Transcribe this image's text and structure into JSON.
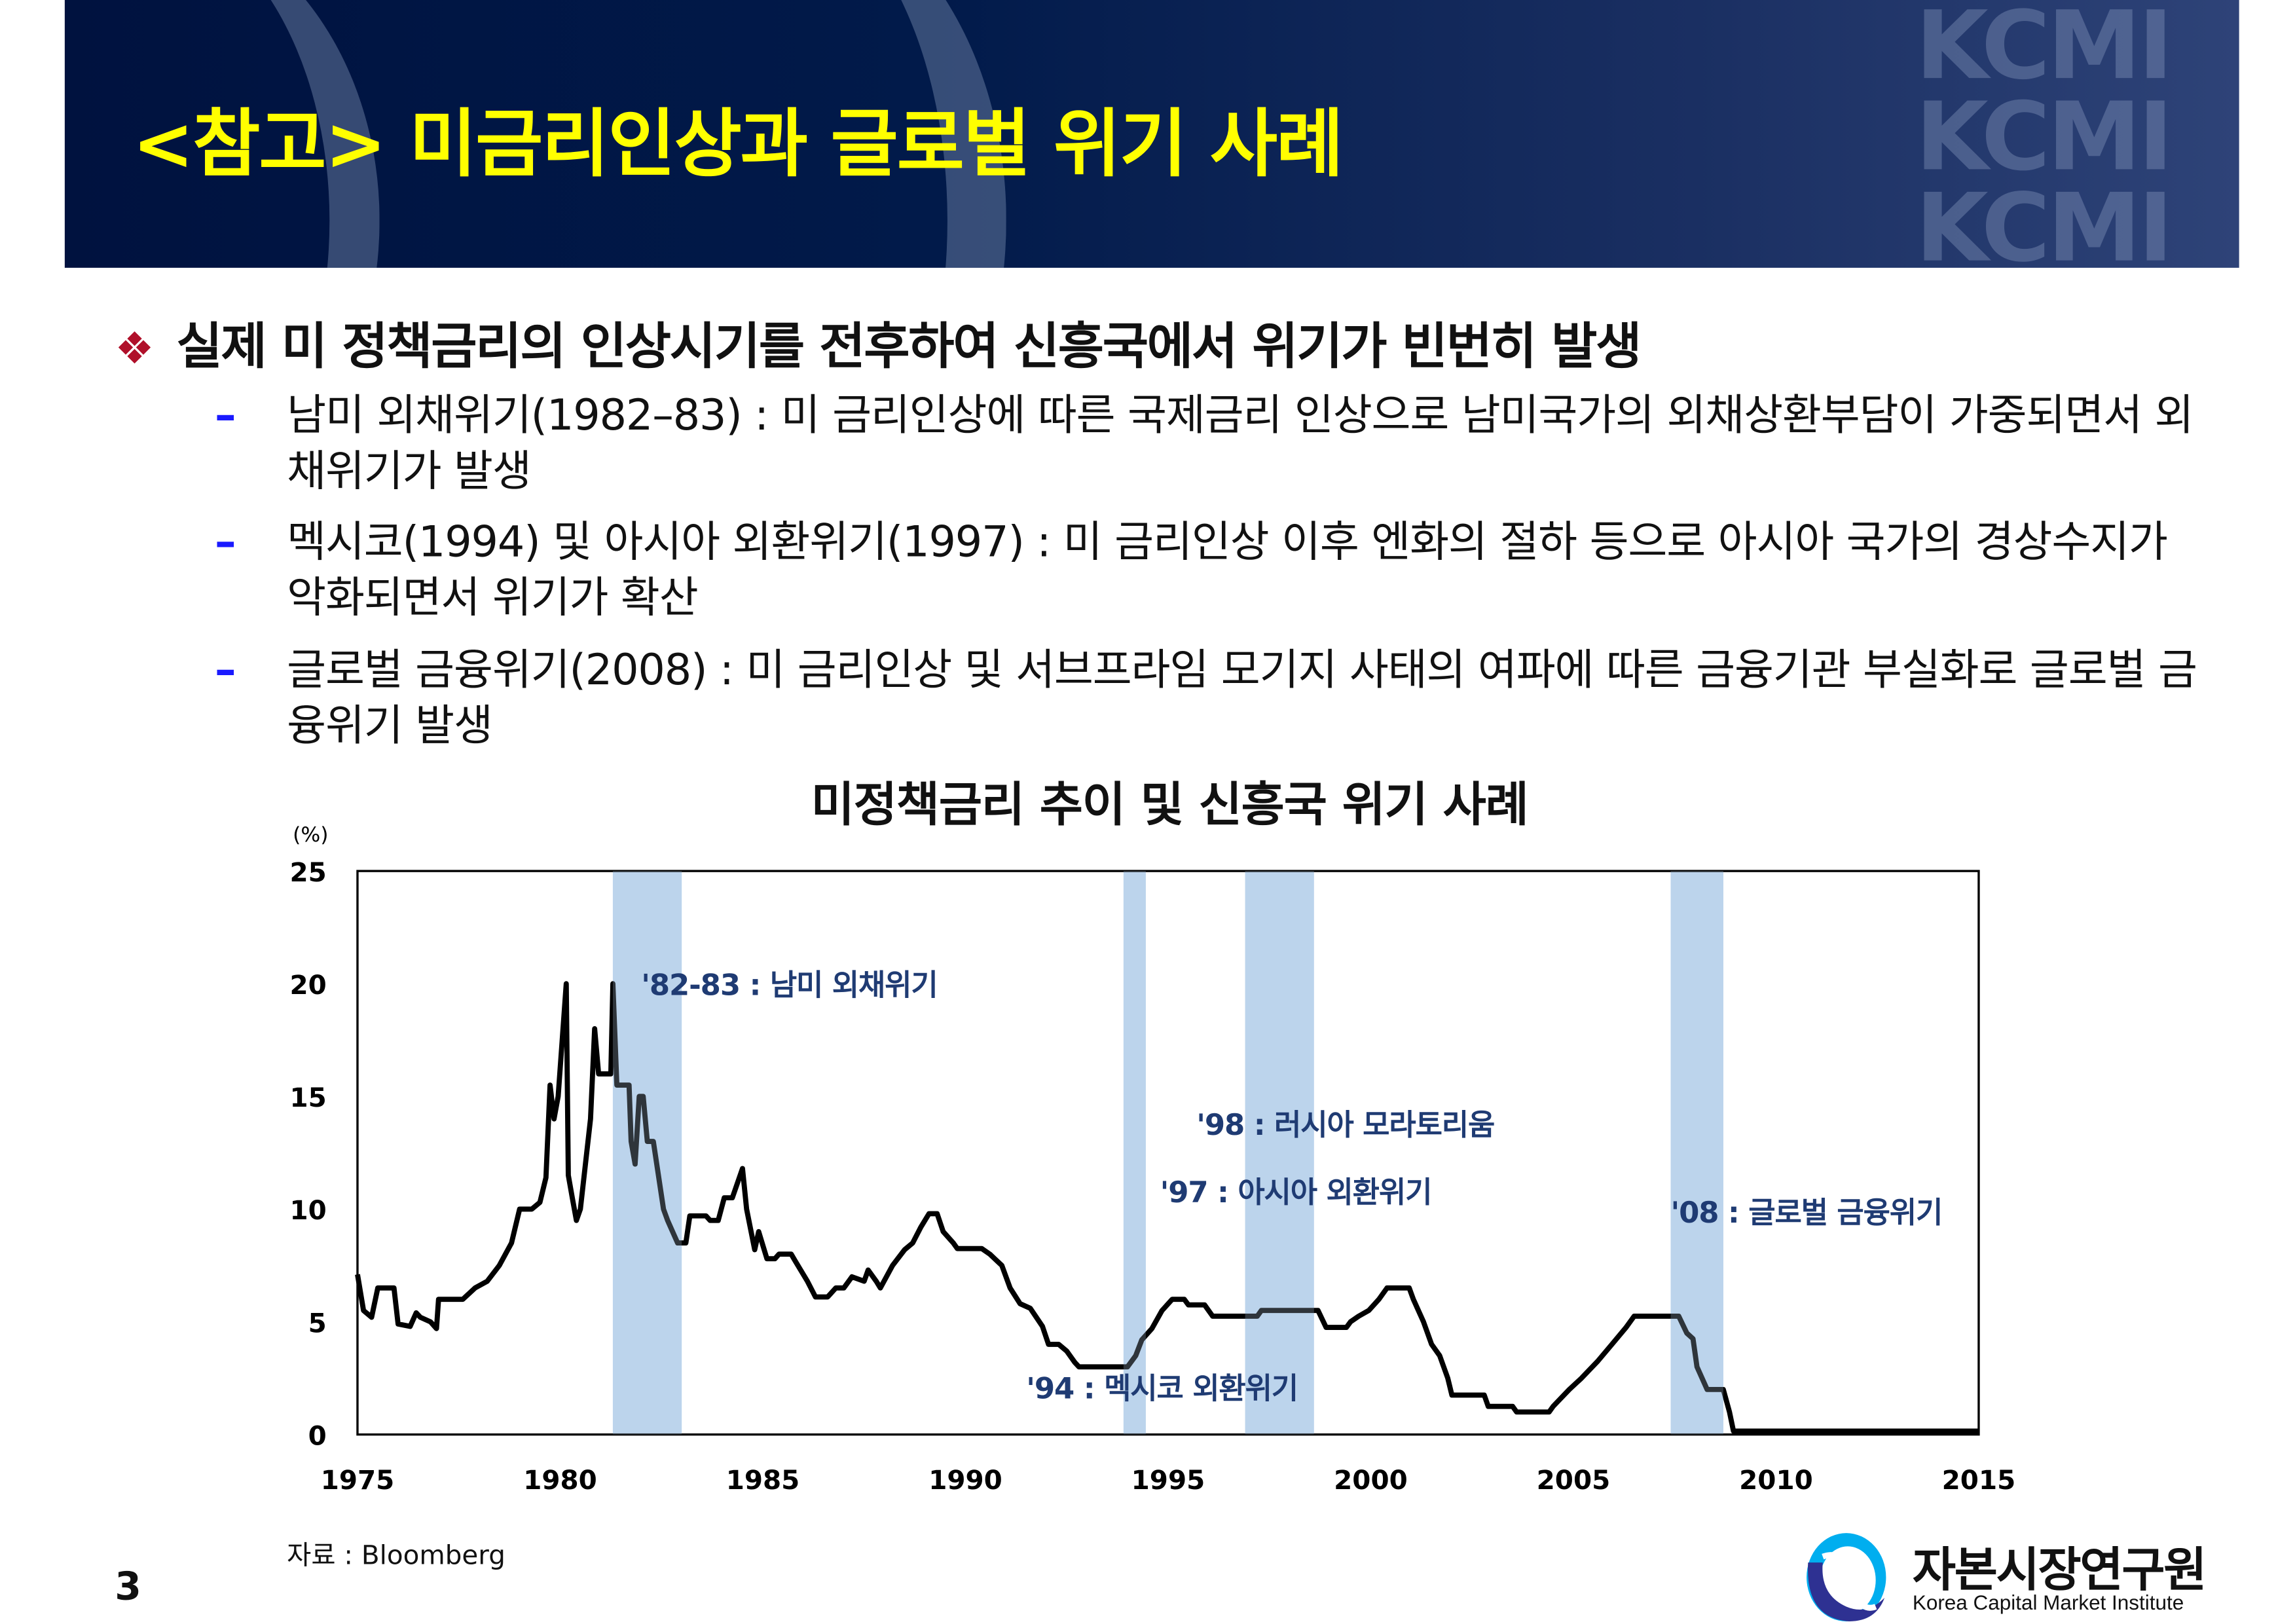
{
  "header": {
    "title": "<참고> 미금리인상과 글로벌 위기 사례",
    "watermark": [
      "KCMI",
      "KCMI",
      "KCMI"
    ]
  },
  "main_bullet": {
    "icon": "diamond-bullet-icon",
    "text": "실제 미 정책금리의 인상시기를 전후하여 신흥국에서 위기가 빈번히 발생"
  },
  "sub_items": [
    {
      "dash": "–",
      "text": "남미 외채위기(1982–83) : 미 금리인상에 따른 국제금리 인상으로 남미국가의 외채상환부담이 가중되면서 외채위기가 발생"
    },
    {
      "dash": "–",
      "text": "멕시코(1994) 및 아시아 외환위기(1997) : 미 금리인상 이후 엔화의 절하 등으로 아시아 국가의 경상수지가 악화되면서 위기가 확산"
    },
    {
      "dash": "–",
      "text": "글로벌 금융위기(2008) : 미 금리인상 및 서브프라임 모기지 사태의 여파에 따른 금융기관 부실화로 글로벌 금융위기 발생"
    }
  ],
  "chart_data": {
    "type": "line",
    "title": "미정책금리 추이 및 신흥국 위기 사례",
    "ylabel": "(%)",
    "xlim": [
      1975,
      2015
    ],
    "ylim": [
      0,
      25
    ],
    "xticks": [
      "1975",
      "1980",
      "1985",
      "1990",
      "1995",
      "2000",
      "2005",
      "2010",
      "2015"
    ],
    "yticks": [
      "0",
      "5",
      "10",
      "15",
      "20",
      "25"
    ],
    "grid": false,
    "line_color": "#000000",
    "band_color": "#bdd5ec",
    "annotation_color": "#1f3b73",
    "shaded_periods": [
      [
        1981.3,
        1983.0
      ],
      [
        1993.9,
        1994.45
      ],
      [
        1996.9,
        1998.6
      ],
      [
        2007.4,
        2008.7
      ]
    ],
    "annotations": [
      {
        "text": "'82-83 : 남미 외채위기",
        "x": 1982.0,
        "y": 19.5
      },
      {
        "text": "'98 : 러시아 모라토리움",
        "x": 1995.7,
        "y": 13.3
      },
      {
        "text": "'97 : 아시아 외환위기",
        "x": 1994.8,
        "y": 10.3
      },
      {
        "text": "'94 : 멕시코 외환위기",
        "x": 1991.5,
        "y": 1.6
      },
      {
        "text": "'08 : 글로벌 금융위기",
        "x": 2007.4,
        "y": 9.4
      }
    ],
    "series": [
      {
        "x": [
          1975.0,
          1975.15,
          1975.35,
          1975.5,
          1975.6,
          1975.9,
          1976.0,
          1976.3,
          1976.45,
          1976.55,
          1976.8,
          1976.95,
          1977.0,
          1977.6,
          1977.9,
          1978.2,
          1978.5,
          1978.8,
          1979.0,
          1979.3,
          1979.5,
          1979.65,
          1979.75,
          1979.85,
          1979.95,
          1980.15,
          1980.2,
          1980.3,
          1980.4,
          1980.5,
          1980.75,
          1980.85,
          1980.95,
          1981.25,
          1981.3,
          1981.4,
          1981.7,
          1981.75,
          1981.85,
          1981.95,
          1982.05,
          1982.15,
          1982.3,
          1982.55,
          1982.65,
          1982.9,
          1983.1,
          1983.2,
          1983.6,
          1983.7,
          1983.9,
          1984.05,
          1984.25,
          1984.5,
          1984.6,
          1984.8,
          1984.9,
          1985.1,
          1985.3,
          1985.4,
          1985.7,
          1985.8,
          1986.1,
          1986.3,
          1986.6,
          1986.8,
          1987.0,
          1987.2,
          1987.5,
          1987.6,
          1987.8,
          1987.9,
          1988.2,
          1988.5,
          1988.7,
          1988.9,
          1989.1,
          1989.3,
          1989.45,
          1989.7,
          1989.8,
          1990.4,
          1990.6,
          1990.9,
          1991.1,
          1991.35,
          1991.6,
          1991.9,
          1992.05,
          1992.3,
          1992.5,
          1992.7,
          1992.8,
          1994.0,
          1994.2,
          1994.35,
          1994.6,
          1994.85,
          1995.1,
          1995.4,
          1995.5,
          1995.9,
          1996.1,
          1997.2,
          1997.3,
          1998.7,
          1998.9,
          1999.4,
          1999.5,
          1999.7,
          1999.95,
          2000.2,
          2000.4,
          2000.95,
          2001.05,
          2001.3,
          2001.5,
          2001.7,
          2001.9,
          2002.0,
          2002.8,
          2002.9,
          2003.5,
          2003.6,
          2004.4,
          2004.5,
          2004.9,
          2005.2,
          2005.6,
          2005.95,
          2006.3,
          2006.5,
          2007.6,
          2007.8,
          2007.95,
          2008.05,
          2008.3,
          2008.7,
          2008.85,
          2008.95,
          2015.0
        ],
        "y": [
          7.1,
          5.5,
          5.2,
          6.5,
          6.5,
          6.5,
          4.9,
          4.8,
          5.4,
          5.2,
          5.0,
          4.7,
          6.0,
          6.0,
          6.5,
          6.8,
          7.5,
          8.5,
          10.0,
          10.0,
          10.3,
          11.4,
          15.5,
          14.0,
          15.0,
          20.0,
          11.5,
          10.5,
          9.5,
          10.0,
          14.0,
          18.0,
          16.0,
          16.0,
          20.0,
          15.5,
          15.5,
          13.0,
          12.0,
          15.0,
          15.0,
          13.0,
          13.0,
          10.0,
          9.5,
          8.5,
          8.5,
          9.7,
          9.7,
          9.5,
          9.5,
          10.5,
          10.5,
          11.8,
          10.0,
          8.2,
          9.0,
          7.8,
          7.8,
          8.0,
          8.0,
          7.7,
          6.8,
          6.1,
          6.1,
          6.5,
          6.5,
          7.0,
          6.8,
          7.3,
          6.8,
          6.5,
          7.5,
          8.2,
          8.5,
          9.2,
          9.8,
          9.8,
          9.0,
          8.5,
          8.25,
          8.25,
          8.0,
          7.5,
          6.5,
          5.8,
          5.6,
          4.8,
          4.0,
          4.0,
          3.7,
          3.2,
          3.0,
          3.0,
          3.5,
          4.2,
          4.7,
          5.5,
          6.0,
          6.0,
          5.75,
          5.75,
          5.25,
          5.25,
          5.5,
          5.5,
          4.75,
          4.75,
          5.0,
          5.25,
          5.5,
          6.0,
          6.5,
          6.5,
          6.0,
          5.0,
          4.0,
          3.5,
          2.5,
          1.75,
          1.75,
          1.25,
          1.25,
          1.0,
          1.0,
          1.25,
          2.0,
          2.5,
          3.25,
          4.0,
          4.75,
          5.25,
          5.25,
          4.5,
          4.25,
          3.0,
          2.0,
          2.0,
          1.0,
          0.15,
          0.15
        ]
      }
    ]
  },
  "source": "자료 : Bloomberg",
  "page_number": "3",
  "logo": {
    "korean": "자본시장연구원",
    "english": "Korea Capital Market Institute"
  }
}
